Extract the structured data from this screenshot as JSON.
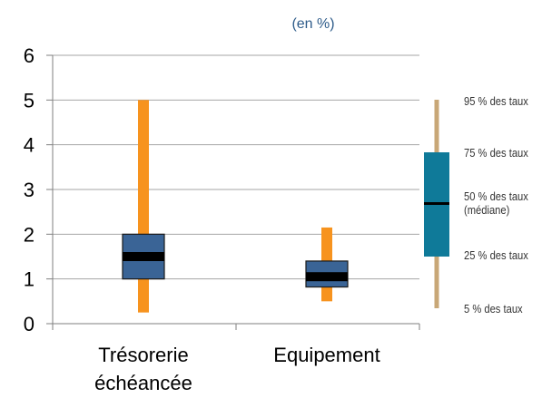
{
  "unit_label": "(en %)",
  "chart_data": {
    "type": "boxplot",
    "title": "",
    "unit": "(en %)",
    "ylim": [
      0,
      6
    ],
    "yticks": [
      "0",
      "1",
      "2",
      "3",
      "4",
      "5",
      "6"
    ],
    "grid": true,
    "categories": [
      "Trésorerie échéancée",
      "Equipement"
    ],
    "category_lines": [
      [
        "Trésorerie",
        "échéancée"
      ],
      [
        "Equipement"
      ]
    ],
    "boxes": [
      {
        "category": "Trésorerie échéancée",
        "p5": 0.25,
        "p25": 1.0,
        "median": 1.5,
        "p75": 2.0,
        "p95": 5.0
      },
      {
        "category": "Equipement",
        "p5": 0.5,
        "p25": 0.82,
        "median": 1.05,
        "p75": 1.4,
        "p95": 2.15
      }
    ],
    "legend": {
      "position": "right",
      "entries": [
        {
          "key": "p95",
          "text": "95 % des taux"
        },
        {
          "key": "p75",
          "text": "75 % des taux"
        },
        {
          "key": "p50",
          "text": "50 % des taux",
          "text2": "(médiane)"
        },
        {
          "key": "p25",
          "text": "25 % des taux"
        },
        {
          "key": "p5",
          "text": "5 % des taux"
        }
      ]
    },
    "colors": {
      "whisker": "#F7931E",
      "box": "#3A6496",
      "box_border": "#1A1A1A",
      "median": "#000000",
      "legend_whisker": "#C8A777",
      "legend_box": "#0F7A99",
      "grid": "#A6A6A6",
      "axis": "#7F7F7F",
      "unit_text": "#2E5C8A"
    }
  }
}
